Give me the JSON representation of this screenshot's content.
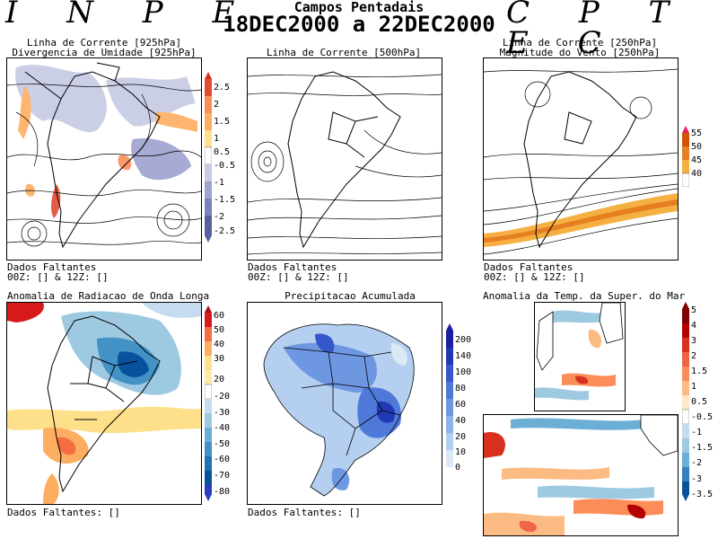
{
  "header": {
    "brand_left": "I N P E",
    "brand_right": "C P T E C",
    "title": "Campos Pentadais",
    "period": "18DEC2000 a 22DEC2000"
  },
  "panels": {
    "p1": {
      "title1": "Linha de Corrente [925hPa]",
      "title2": "Divergencia de Umidade [925hPa]",
      "footer1": "Dados Faltantes",
      "footer2": "00Z: [] & 12Z: []",
      "colorbar": [
        "2.5",
        "2",
        "1.5",
        "1",
        "0.5",
        "-0.5",
        "-1",
        "-1.5",
        "-2",
        "-2.5"
      ]
    },
    "p2": {
      "title1": "Linha de Corrente [500hPa]",
      "footer1": "Dados Faltantes",
      "footer2": "00Z: [] & 12Z: []"
    },
    "p3": {
      "title1": "Linha de Corrente [250hPa]",
      "title2": "Magnitude do Vento [250hPa]",
      "footer1": "Dados Faltantes",
      "footer2": "00Z: [] & 12Z: []",
      "colorbar": [
        "55",
        "50",
        "45",
        "40"
      ]
    },
    "p4": {
      "title1": "Anomalia de Radiacao de Onda Longa",
      "footer1": "Dados Faltantes: []",
      "colorbar": [
        "60",
        "50",
        "40",
        "30",
        "20",
        "-20",
        "-30",
        "-40",
        "-50",
        "-60",
        "-70",
        "-80"
      ]
    },
    "p5": {
      "title1": "Precipitacao Acumulada",
      "footer1": "Dados Faltantes: []",
      "colorbar": [
        "200",
        "140",
        "100",
        "80",
        "60",
        "40",
        "20",
        "10",
        "0"
      ]
    },
    "p6": {
      "title1": "Anomalia da Temp. da Super. do Mar",
      "colorbar": [
        "5",
        "4",
        "3",
        "2",
        "1.5",
        "1",
        "0.5",
        "-0.5",
        "-1",
        "-1.5",
        "-2",
        "-3",
        "-3.5"
      ]
    }
  },
  "colors": {
    "div_pos": [
      "#e34a33",
      "#fc8d59",
      "#fdae61",
      "#fee08b"
    ],
    "div_neg": [
      "#c6cae3",
      "#9ea3cf",
      "#7c82bb",
      "#5a5f9f"
    ],
    "wind": [
      "#f5b041",
      "#e67e22",
      "#d35400",
      "#e91e63"
    ],
    "olr_pos": [
      "#d7191c",
      "#f46d43",
      "#fdae61",
      "#fee08b",
      "#ffe9a8"
    ],
    "olr_neg": [
      "#c6dbef",
      "#9ecae1",
      "#6baed6",
      "#4292c6",
      "#2171b5",
      "#08519c",
      "#2a3cc4"
    ],
    "prec": [
      "#ffffff",
      "#dbe9f6",
      "#b4cff0",
      "#8fb4ea",
      "#6e97e2",
      "#4f79d8",
      "#3557c9",
      "#2238b5",
      "#1c1fa0"
    ],
    "sst": [
      "#7f0000",
      "#b30000",
      "#d7301f",
      "#ef6548",
      "#fc8d59",
      "#fdbb84",
      "#fee8c8",
      "#ffffff",
      "#c6dbef",
      "#9ecae1",
      "#6baed6",
      "#3182bd",
      "#08519c"
    ]
  }
}
